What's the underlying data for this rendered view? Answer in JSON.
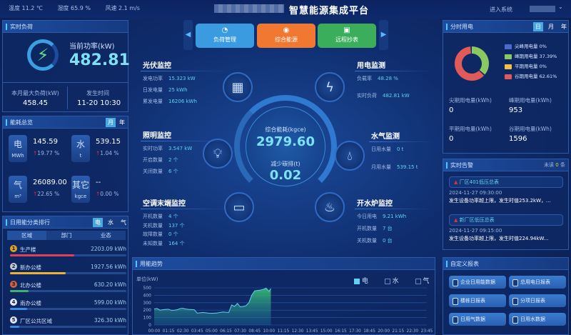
{
  "header": {
    "temperature": "温度 11.2 ℃",
    "humidity": "湿度 65.9 %",
    "wind": "风速 2.1 m/s",
    "title": "智慧能源集成平台",
    "enter_system": "进入系统"
  },
  "realtime_load": {
    "title": "实时负荷",
    "current_label": "当前功率(kW)",
    "current_value": "482.81",
    "max_label": "本月最大负荷(kW)",
    "max_value": "458.45",
    "time_label": "发生时间",
    "time_value": "11-20 10:30"
  },
  "overview": {
    "title": "能耗总览",
    "toggles": [
      "月",
      "年"
    ],
    "active_toggle": "月",
    "items": [
      {
        "name": "电",
        "unit": "MWh",
        "value": "145.59",
        "change": "19.77 %"
      },
      {
        "name": "水",
        "unit": "t",
        "value": "539.15",
        "change": "1.04 %"
      },
      {
        "name": "气",
        "unit": "m³",
        "value": "26089.00",
        "change": "22.65 %"
      },
      {
        "name": "其它",
        "unit": "kgce",
        "value": "--",
        "change": "0.00 %"
      }
    ]
  },
  "ranking": {
    "title": "日用能分类排行",
    "toggles": [
      "电",
      "水",
      "气"
    ],
    "active_toggle": "电",
    "tabs": [
      "区域",
      "部门",
      "业态"
    ],
    "active_tab": "区域",
    "items": [
      {
        "rank": "1",
        "name": "生产楼",
        "value": "2203.09 kWh",
        "fraction": 0.55,
        "color": "#e0405a"
      },
      {
        "rank": "2",
        "name": "新办公楼",
        "value": "1927.56 kWh",
        "fraction": 0.48,
        "color": "#f0b030"
      },
      {
        "rank": "3",
        "name": "北办公楼",
        "value": "630.20 kWh",
        "fraction": 0.16,
        "color": "#40b070"
      },
      {
        "rank": "4",
        "name": "南办公楼",
        "value": "599.00 kWh",
        "fraction": 0.15,
        "color": "#3a8ae0"
      },
      {
        "rank": "5",
        "name": "厂区公共区域",
        "value": "326.30 kWh",
        "fraction": 0.08,
        "color": "#3a8ae0"
      }
    ]
  },
  "nav": {
    "buttons": [
      {
        "label": "负荷管理",
        "icon": "gauge-icon",
        "color": "#3a9be0"
      },
      {
        "label": "综合能源",
        "icon": "energy-icon",
        "color": "#f07830"
      },
      {
        "label": "远程抄表",
        "icon": "meter-icon",
        "color": "#3aae5a"
      }
    ]
  },
  "pv": {
    "title": "光伏监控",
    "rows": [
      {
        "label": "发电功率",
        "value": "15.323 kW"
      },
      {
        "label": "日发电量",
        "value": "25 kWh"
      },
      {
        "label": "累发电量",
        "value": "16206 kWh"
      }
    ]
  },
  "lighting": {
    "title": "照明监控",
    "rows": [
      {
        "label": "实时功率",
        "value": "3.547 kW"
      },
      {
        "label": "开启数量",
        "value": "2 个"
      },
      {
        "label": "关闭数量",
        "value": "6 个"
      }
    ]
  },
  "hvac": {
    "title": "空调末端监控",
    "rows": [
      {
        "label": "开机数量",
        "value": "4 个"
      },
      {
        "label": "关机数量",
        "value": "137 个"
      },
      {
        "label": "故障数量",
        "value": "0 个"
      },
      {
        "label": "未知数量",
        "value": "164 个"
      }
    ]
  },
  "power": {
    "title": "用电监测",
    "rows": [
      {
        "label": "负载率",
        "value": "48.28 %"
      },
      {
        "label": "实时负荷",
        "value": "482.81 kW"
      }
    ]
  },
  "water": {
    "title": "水气监测",
    "rows": [
      {
        "label": "日用水量",
        "value": "0 t"
      },
      {
        "label": "月用水量",
        "value": "539.15 t"
      }
    ]
  },
  "boiler": {
    "title": "开水炉监控",
    "rows": [
      {
        "label": "今日用电",
        "value": "9.21 kWh"
      },
      {
        "label": "开机数量",
        "value": "7 台"
      },
      {
        "label": "关机数量",
        "value": "0 台"
      }
    ]
  },
  "center": {
    "energy_label": "综合能耗(kgce)",
    "energy_value": "2979.60",
    "carbon_label": "减少碳排(t)",
    "carbon_value": "0.02"
  },
  "tou": {
    "title": "分时用电",
    "toggles": [
      "日",
      "月",
      "年"
    ],
    "active_toggle": "日",
    "legend": [
      {
        "name": "尖峰用电量",
        "pct": "0%",
        "value": 0,
        "color": "#4a6ad0"
      },
      {
        "name": "峰期用电量",
        "pct": "37.39%",
        "value": 37.39,
        "color": "#8ac860"
      },
      {
        "name": "平期用电量",
        "pct": "0%",
        "value": 0,
        "color": "#f0c040"
      },
      {
        "name": "谷期用电量",
        "pct": "62.61%",
        "value": 62.61,
        "color": "#e05a5a"
      }
    ],
    "stats": [
      {
        "label": "尖期用电量(kWh)",
        "value": "0"
      },
      {
        "label": "峰期用电量(kWh)",
        "value": "953"
      },
      {
        "label": "平期用电量(kWh)",
        "value": "0"
      },
      {
        "label": "谷期用电量(kWh)",
        "value": "1596"
      }
    ]
  },
  "alarms": {
    "title": "实时告警",
    "unread": "未读",
    "unread_count": "0",
    "unit": "条",
    "items": [
      {
        "name": "厂区401低压总表",
        "time": "2024-11-27 09:30:00",
        "desc": "发生设备功率越上限，发生时值253.2kW，..."
      },
      {
        "name": "新厂区低压总表",
        "time": "2024-11-27 09:15:00",
        "desc": "发生设备功率越上限，发生时值224.94kW..."
      }
    ]
  },
  "reports": {
    "title": "自定义报表",
    "buttons": [
      "企业日用能数据",
      "总用电日报表",
      "楼栋日报表",
      "分项日报表",
      "日用气数据",
      "日用水数据"
    ]
  },
  "chart_data": {
    "type": "area",
    "title": "用能趋势",
    "ylabel": "单位(kW)",
    "ylim": [
      0,
      500
    ],
    "yticks": [
      0,
      100,
      200,
      300,
      400,
      500
    ],
    "grid": true,
    "legend_placement": "top-right",
    "legend": [
      {
        "name": "电",
        "active": true
      },
      {
        "name": "水",
        "active": false
      },
      {
        "name": "气",
        "active": false
      }
    ],
    "xtick_labels": [
      "00:00",
      "01:15",
      "02:30",
      "03:45",
      "05:00",
      "06:15",
      "07:30",
      "08:45",
      "10:00",
      "11:15",
      "12:30",
      "13:45",
      "15:00",
      "16:15",
      "17:30",
      "18:45",
      "20:00",
      "21:15",
      "22:30",
      "23:45"
    ],
    "series": [
      {
        "name": "电",
        "color": "#5fd3f0",
        "x": [
          "00:00",
          "00:15",
          "00:30",
          "00:45",
          "01:00",
          "01:15",
          "01:30",
          "01:45",
          "02:00",
          "02:15",
          "02:30",
          "02:45",
          "03:00",
          "03:15",
          "03:30",
          "03:45",
          "04:00",
          "04:15",
          "04:30",
          "04:45",
          "05:00",
          "05:15",
          "05:30",
          "05:45",
          "06:00",
          "06:15",
          "06:30",
          "06:45",
          "07:00",
          "07:15",
          "07:30",
          "07:45",
          "08:00",
          "08:15",
          "08:30",
          "08:45",
          "09:00",
          "09:15",
          "09:30",
          "09:45",
          "10:00",
          "10:10"
        ],
        "values": [
          215,
          222,
          200,
          205,
          210,
          212,
          198,
          200,
          205,
          220,
          225,
          215,
          210,
          208,
          205,
          160,
          165,
          168,
          165,
          160,
          158,
          160,
          162,
          170,
          175,
          172,
          170,
          270,
          250,
          290,
          245,
          250,
          260,
          300,
          400,
          460,
          465,
          470,
          480,
          495,
          455,
          490
        ]
      }
    ]
  }
}
